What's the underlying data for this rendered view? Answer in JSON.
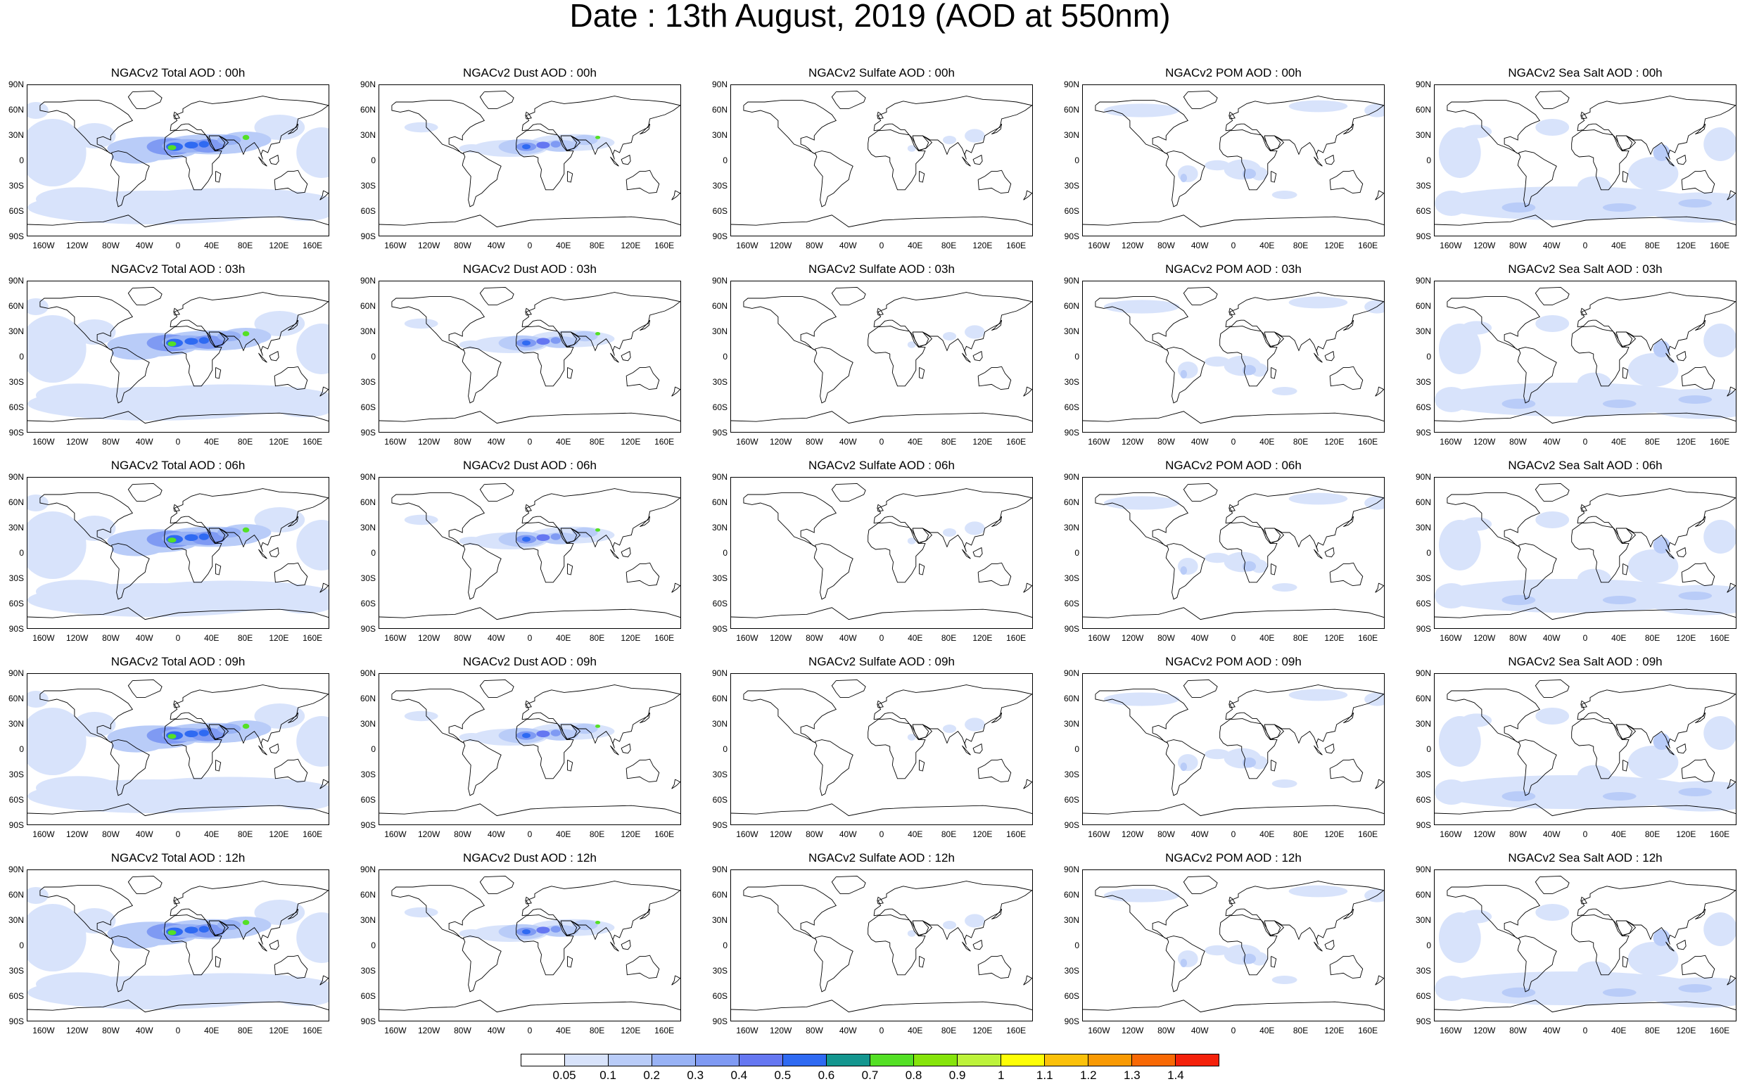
{
  "title": "Date : 13th August, 2019 (AOD at 550nm)",
  "panels": [
    {
      "title": "NGACv2 Total AOD : 00h",
      "species": "total"
    },
    {
      "title": "NGACv2 Dust AOD : 00h",
      "species": "dust"
    },
    {
      "title": "NGACv2 Sulfate AOD : 00h",
      "species": "sulfate"
    },
    {
      "title": "NGACv2 POM AOD : 00h",
      "species": "pom"
    },
    {
      "title": "NGACv2 Sea Salt AOD : 00h",
      "species": "seasalt"
    },
    {
      "title": "NGACv2 Total AOD : 03h",
      "species": "total"
    },
    {
      "title": "NGACv2 Dust AOD : 03h",
      "species": "dust"
    },
    {
      "title": "NGACv2 Sulfate AOD : 03h",
      "species": "sulfate"
    },
    {
      "title": "NGACv2 POM AOD : 03h",
      "species": "pom"
    },
    {
      "title": "NGACv2 Sea Salt AOD : 03h",
      "species": "seasalt"
    },
    {
      "title": "NGACv2 Total AOD : 06h",
      "species": "total"
    },
    {
      "title": "NGACv2 Dust AOD : 06h",
      "species": "dust"
    },
    {
      "title": "NGACv2 Sulfate AOD : 06h",
      "species": "sulfate"
    },
    {
      "title": "NGACv2 POM AOD : 06h",
      "species": "pom"
    },
    {
      "title": "NGACv2 Sea Salt AOD : 06h",
      "species": "seasalt"
    },
    {
      "title": "NGACv2 Total AOD : 09h",
      "species": "total"
    },
    {
      "title": "NGACv2 Dust AOD : 09h",
      "species": "dust"
    },
    {
      "title": "NGACv2 Sulfate AOD : 09h",
      "species": "sulfate"
    },
    {
      "title": "NGACv2 POM AOD : 09h",
      "species": "pom"
    },
    {
      "title": "NGACv2 Sea Salt  AOD : 09h",
      "species": "seasalt"
    },
    {
      "title": "NGACv2 Total AOD  : 12h",
      "species": "total"
    },
    {
      "title": "NGACv2 Dust AOD : 12h",
      "species": "dust"
    },
    {
      "title": "NGACv2 Sulfate AOD : 12h",
      "species": "sulfate"
    },
    {
      "title": "NGACv2 POM  AOD : 12h",
      "species": "pom"
    },
    {
      "title": "NGACv2 Sea Salt  AOD : 12h",
      "species": "seasalt"
    }
  ],
  "lat_ticks": [
    "90N",
    "60N",
    "30N",
    "0",
    "30S",
    "60S",
    "90S"
  ],
  "lon_ticks": [
    "160W",
    "120W",
    "80W",
    "40W",
    "0",
    "40E",
    "80E",
    "120E",
    "160E"
  ],
  "lat_values": [
    90,
    60,
    30,
    0,
    -30,
    -60,
    -90
  ],
  "lon_values": [
    -160,
    -120,
    -80,
    -40,
    0,
    40,
    80,
    120,
    160
  ],
  "colorbar": {
    "labels": [
      "0.05",
      "0.1",
      "0.2",
      "0.3",
      "0.4",
      "0.5",
      "0.6",
      "0.7",
      "0.8",
      "0.9",
      "1",
      "1.1",
      "1.2",
      "1.3",
      "1.4"
    ],
    "colors": [
      "#ffffff",
      "#d8e3fb",
      "#b9ccf8",
      "#98b2f5",
      "#7f9af3",
      "#6577f1",
      "#2f6af2",
      "#14968f",
      "#54e025",
      "#86e40b",
      "#bdf33b",
      "#fdfe06",
      "#fbc10a",
      "#f99a04",
      "#f86905",
      "#f4210b"
    ]
  }
}
